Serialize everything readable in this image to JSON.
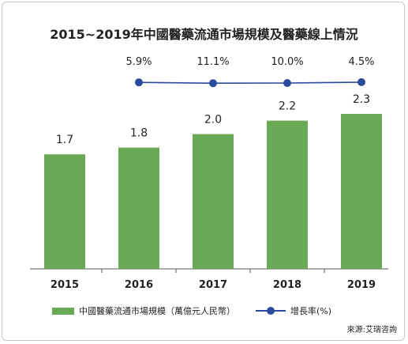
{
  "title": "2015~2019年中國醫藥流通市場規模及醫藥線上情況",
  "source": "來源:艾瑞咨詢",
  "legend": {
    "bar_label": "中國醫藥流通市場規模（萬億元人民幣）",
    "line_label": "增長率(%)"
  },
  "colors": {
    "bar": "#6aaa57",
    "line": "#2a4b9b",
    "axis": "#555555"
  },
  "chart_data": {
    "type": "bar",
    "title": "2015~2019年中國醫藥流通市場規模及醫藥線上情況",
    "categories": [
      "2015",
      "2016",
      "2017",
      "2018",
      "2019"
    ],
    "series": [
      {
        "name": "中國醫藥流通市場規模（萬億元人民幣）",
        "type": "bar",
        "values": [
          1.7,
          1.8,
          2.0,
          2.2,
          2.3
        ]
      },
      {
        "name": "增長率(%)",
        "type": "line",
        "values": [
          null,
          5.9,
          11.1,
          10.0,
          4.5
        ]
      }
    ],
    "bar_labels": [
      "1.7",
      "1.8",
      "2.0",
      "2.2",
      "2.3"
    ],
    "line_labels": [
      "",
      "5.9%",
      "11.1%",
      "10.0%",
      "4.5%"
    ],
    "grid": false,
    "legend_position": "bottom"
  }
}
